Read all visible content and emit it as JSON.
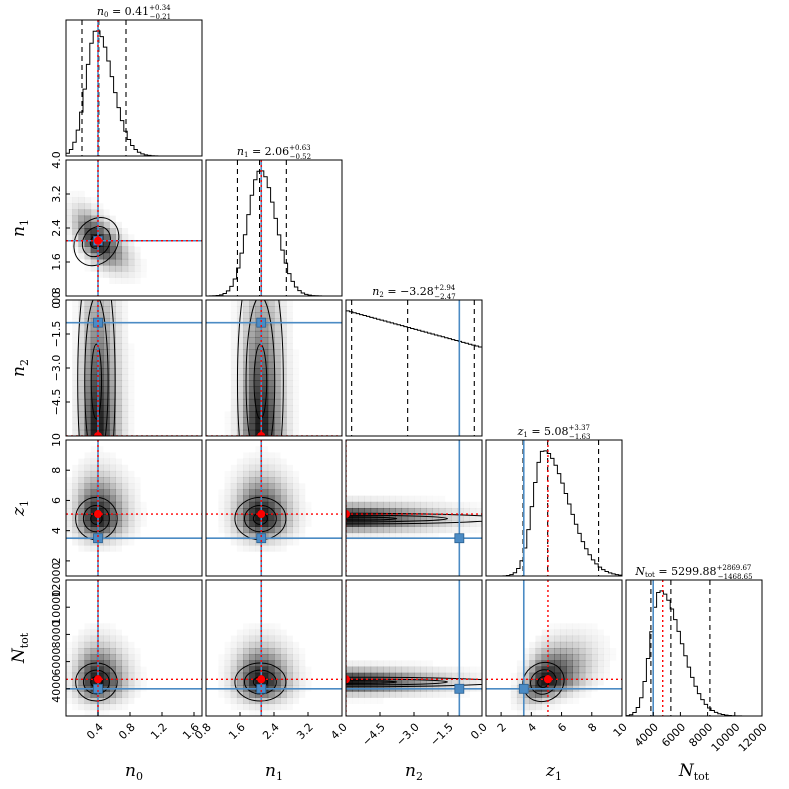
{
  "chart_data": {
    "type": "corner",
    "parameters": [
      {
        "key": "n0",
        "label": "n",
        "sub": "0",
        "range": [
          0,
          1.7
        ],
        "ticks": [
          0.4,
          0.8,
          1.2,
          1.6
        ],
        "tick_labels": [
          "0.4",
          "0.8",
          "1.2",
          "1.6"
        ],
        "true_value": 0.4,
        "best_fit": 0.4,
        "title_main": "n",
        "title_sub": "0",
        "title_value": " = 0.41",
        "title_plus": "+0.34",
        "title_minus": "−0.21",
        "quantiles": [
          0.2,
          0.41,
          0.75
        ],
        "hist_peak": 0.38,
        "hist_sigma": 0.13,
        "hist_skew": 0.25
      },
      {
        "key": "n1",
        "label": "n",
        "sub": "1",
        "range": [
          0.8,
          4.0
        ],
        "ticks": [
          0.8,
          1.6,
          2.4,
          3.2,
          4.0
        ],
        "tick_labels": [
          "0.8",
          "1.6",
          "2.4",
          "3.2",
          "4.0"
        ],
        "true_value": 2.1,
        "best_fit": 2.1,
        "title_main": "n",
        "title_sub": "1",
        "title_value": " = 2.06",
        "title_plus": "+0.63",
        "title_minus": "−0.52",
        "quantiles": [
          1.54,
          2.06,
          2.69
        ],
        "hist_peak": 2.08,
        "hist_sigma": 0.3,
        "hist_skew": 0.1
      },
      {
        "key": "n2",
        "label": "n",
        "sub": "2",
        "range": [
          -6.0,
          0.0
        ],
        "ticks": [
          -4.5,
          -3.0,
          -1.5,
          0.0
        ],
        "tick_labels": [
          "−4.5",
          "−3.0",
          "−1.5",
          "0.0"
        ],
        "true_value": -1.0,
        "best_fit": -6.0,
        "title_main": "n",
        "title_sub": "2",
        "title_value": " = −3.28",
        "title_plus": "+2.94",
        "title_minus": "−2.47",
        "quantiles": [
          -5.75,
          -3.28,
          -0.34
        ],
        "hist_peak": -6.0,
        "hist_sigma": 3.0,
        "hist_skew": 0.0
      },
      {
        "key": "z1",
        "label": "z",
        "sub": "1",
        "range": [
          1,
          10
        ],
        "ticks": [
          2,
          4,
          6,
          8,
          10
        ],
        "tick_labels": [
          "2",
          "4",
          "6",
          "8",
          "10"
        ],
        "true_value": 3.5,
        "best_fit": 5.1,
        "title_main": "z",
        "title_sub": "1",
        "title_value": " = 5.08",
        "title_plus": "+3.37",
        "title_minus": "−1.63",
        "quantiles": [
          3.45,
          5.08,
          8.45
        ],
        "hist_peak": 4.8,
        "hist_sigma": 0.7,
        "hist_skew": 0.6
      },
      {
        "key": "Ntot",
        "label": "N",
        "sub": "tot",
        "range": [
          2000,
          12000
        ],
        "ticks": [
          4000,
          6000,
          8000,
          10000,
          12000
        ],
        "tick_labels": [
          "4000",
          "6000",
          "8000",
          "10000",
          "12000"
        ],
        "true_value": 4000,
        "best_fit": 4700,
        "title_main": "N",
        "title_sub": "tot",
        "title_value": " = 5299.88",
        "title_plus": "+2869.67",
        "title_minus": "−1468.65",
        "quantiles": [
          3831.23,
          5299.88,
          8169.55
        ],
        "hist_peak": 4500,
        "hist_sigma": 700,
        "hist_skew": 0.55
      }
    ],
    "correlations": {
      "n0|n1": -0.6,
      "z1|Ntot": 0.45
    },
    "colors": {
      "truth_line": "#4b8bc4",
      "best_fit": "#ff0000",
      "contour": "#000000",
      "density": "#000000"
    },
    "grid": false
  }
}
